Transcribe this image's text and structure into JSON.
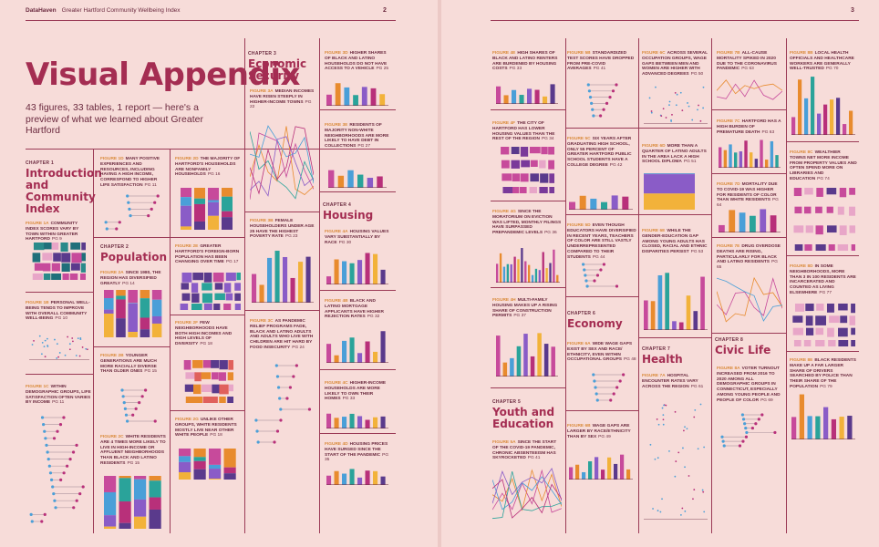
{
  "header": {
    "brand": "DataHaven",
    "doc_title": "Greater Hartford Community Wellbeing Index"
  },
  "pages": {
    "left": "2",
    "right": "3"
  },
  "title": "Visual Appendix",
  "subtitle": "43 figures, 33 tables, 1 report — here's a preview of what we learned about Greater Hartford",
  "chapters": [
    {
      "label": "CHAPTER 1",
      "name": "Introduction and Community Index"
    },
    {
      "label": "CHAPTER 2",
      "name": "Population"
    },
    {
      "label": "CHAPTER 3",
      "name": "Economic Security"
    },
    {
      "label": "CHAPTER 4",
      "name": "Housing"
    },
    {
      "label": "CHAPTER 5",
      "name": "Youth and Education"
    },
    {
      "label": "CHAPTER 6",
      "name": "Economy"
    },
    {
      "label": "CHAPTER 7",
      "name": "Health"
    },
    {
      "label": "CHAPTER 8",
      "name": "Civic Life"
    }
  ],
  "figures": [
    {
      "num": "FIGURE 1A",
      "text": "COMMUNITY INDEX SCORES VARY BY TOWN WITHIN GREATER HARTFORD",
      "pg": "PG 9"
    },
    {
      "num": "FIGURE 1B",
      "text": "PERSONAL WELL-BEING TENDS TO IMPROVE WITH OVERALL COMMUNITY WELL-BEING",
      "pg": "PG 10"
    },
    {
      "num": "FIGURE 1C",
      "text": "WITHIN DEMOGRAPHIC GROUPS, LIFE SATISFACTION OFTEN VARIES BY INCOME",
      "pg": "PG 11"
    },
    {
      "num": "FIGURE 1D",
      "text": "MANY POSITIVE EXPERIENCES AND RESOURCES, INCLUDING HAVING A HIGH INCOME, CORRESPOND TO HIGHER LIFE SATISFACTION",
      "pg": "PG 11"
    },
    {
      "num": "FIGURE 2A",
      "text": "SINCE 1980, THE REGION HAS DIVERSIFIED GREATLY",
      "pg": "PG 14"
    },
    {
      "num": "FIGURE 2B",
      "text": "YOUNGER GENERATIONS ARE MUCH MORE RACIALLY DIVERSE THAN OLDER ONES",
      "pg": "PG 15"
    },
    {
      "num": "FIGURE 2C",
      "text": "WHITE RESIDENTS ARE 4 TIMES MORE LIKELY TO LIVE IN HIGH-INCOME OR AFFLUENT NEIGHBORHOODS THAN BLACK AND LATINO RESIDENTS",
      "pg": "PG 15"
    },
    {
      "num": "FIGURE 2D",
      "text": "THE MAJORITY OF HARTFORD'S HOUSEHOLDS ARE NONFAMILY HOUSEHOLDS",
      "pg": "PG 16"
    },
    {
      "num": "FIGURE 2E",
      "text": "GREATER HARTFORD'S FOREIGN-BORN POPULATION HAS BEEN CHANGING OVER TIME",
      "pg": "PG 17"
    },
    {
      "num": "FIGURE 2F",
      "text": "FEW NEIGHBORHOODS HAVE BOTH HIGH INCOMES AND HIGH LEVELS OF DIVERSITY",
      "pg": "PG 18"
    },
    {
      "num": "FIGURE 2G",
      "text": "UNLIKE OTHER GROUPS, WHITE RESIDENTS MOSTLY LIVE NEAR OTHER WHITE PEOPLE",
      "pg": "PG 18"
    },
    {
      "num": "FIGURE 3A",
      "text": "MEDIAN INCOMES HAVE RISEN STEEPLY IN HIGHER-INCOME TOWNS",
      "pg": "PG 22"
    },
    {
      "num": "FIGURE 3B",
      "text": "FEMALE HOUSEHOLDERS UNDER AGE 25 HAVE THE HIGHEST POVERTY RATE",
      "pg": "PG 23"
    },
    {
      "num": "FIGURE 3C",
      "text": "AS PANDEMIC RELIEF PROGRAMS FADE, BLACK AND LATINO ADULTS AND ADULTS WHO LIVE WITH CHILDREN ARE HIT HARD BY FOOD INSECURITY",
      "pg": "PG 24"
    },
    {
      "num": "FIGURE 3D",
      "text": "HIGHER SHARES OF BLACK AND LATINO HOUSEHOLDS DO NOT HAVE ACCESS TO A VEHICLE",
      "pg": "PG 25"
    },
    {
      "num": "FIGURE 3E",
      "text": "RESIDENTS OF MAJORITY NON-WHITE NEIGHBORHOODS ARE MORE LIKELY TO HAVE DEBT IN COLLECTIONS",
      "pg": "PG 27"
    },
    {
      "num": "FIGURE 4A",
      "text": "HOUSING VALUES VARY SUBSTANTIALLY BY RACE",
      "pg": "PG 30"
    },
    {
      "num": "FIGURE 4B",
      "text": "BLACK AND LATINO MORTGAGE APPLICANTS HAVE HIGHER REJECTION RATES",
      "pg": "PG 32"
    },
    {
      "num": "FIGURE 4C",
      "text": "HIGHER-INCOME HOUSEHOLDS ARE MORE LIKELY TO OWN THEIR HOMES",
      "pg": "PG 33"
    },
    {
      "num": "FIGURE 4D",
      "text": "HOUSING PRICES HAVE SURGED SINCE THE START OF THE PANDEMIC",
      "pg": "PG 35"
    },
    {
      "num": "FIGURE 4E",
      "text": "HIGH SHARES OF BLACK AND LATINO RENTERS ARE BURDENED BY HOUSING COSTS",
      "pg": "PG 33"
    },
    {
      "num": "FIGURE 4F",
      "text": "THE CITY OF HARTFORD HAS LOWER HOUSING VALUES THAN THE REST OF THE REGION",
      "pg": "PG 34"
    },
    {
      "num": "FIGURE 4G",
      "text": "SINCE THE MORATORIUM ON EVICTION WAS LIFTED, MONTHLY FILINGS HAVE SURPASSED PREPANDEMIC LEVELS",
      "pg": "PG 36"
    },
    {
      "num": "FIGURE 4H",
      "text": "MULTI-FAMILY HOUSING MAKES UP A RISING SHARE OF CONSTRUCTION PERMITS",
      "pg": "PG 37"
    },
    {
      "num": "FIGURE 5A",
      "text": "SINCE THE START OF THE COVID-19 PANDEMIC, CHRONIC ABSENTEEISM HAS SKYROCKETED",
      "pg": "PG 41"
    },
    {
      "num": "FIGURE 5B",
      "text": "STANDARDIZED TEST SCORES HAVE DROPPED FROM PRE-COVID AVERAGES",
      "pg": "PG 41"
    },
    {
      "num": "FIGURE 5C",
      "text": "SIX YEARS AFTER GRADUATING HIGH SCHOOL, ONLY 55 PERCENT OF GREATER HARTFORD PUBLIC SCHOOL STUDENTS HAVE A COLLEGE DEGREE",
      "pg": "PG 42"
    },
    {
      "num": "FIGURE 5D",
      "text": "EVEN THOUGH EDUCATORS HAVE DIVERSIFIED IN RECENT YEARS, TEACHERS OF COLOR ARE STILL VASTLY UNDERREPRESENTED COMPARED TO THEIR STUDENTS",
      "pg": "PG 44"
    },
    {
      "num": "FIGURE 6A",
      "text": "WIDE WAGE GAPS EXIST BY SEX AND RACE/ ETHNICITY, EVEN WITHIN OCCUPATIONAL GROUPS",
      "pg": "PG 48"
    },
    {
      "num": "FIGURE 6B",
      "text": "WAGE GAPS ARE LARGER BY RACE/ETHNICITY THAN BY SEX",
      "pg": "PG 49"
    },
    {
      "num": "FIGURE 6C",
      "text": "ACROSS SEVERAL OCCUPATION GROUPS, WAGE GAPS BETWEEN MEN AND WOMEN ARE HIGHER WITH ADVANCED DEGREES",
      "pg": "PG 50"
    },
    {
      "num": "FIGURE 6D",
      "text": "MORE THAN A QUARTER OF LATINO ADULTS IN THE AREA LACK A HIGH SCHOOL DIPLOMA",
      "pg": "PG 51"
    },
    {
      "num": "FIGURE 6E",
      "text": "WHILE THE GENDER-EDUCATION GAP AMONG YOUNG ADULTS HAS CLOSED, RACIAL AND ETHNIC DISPARITIES PERSIST",
      "pg": "PG 53"
    },
    {
      "num": "FIGURE 7A",
      "text": "HOSPITAL ENCOUNTER RATES VARY ACROSS THE REGION",
      "pg": "PG 61"
    },
    {
      "num": "FIGURE 7B",
      "text": "ALL-CAUSE MORTALITY SPIKED IN 2020 DUE TO THE CORONAVIRUS PANDEMIC",
      "pg": "PG 63"
    },
    {
      "num": "FIGURE 7C",
      "text": "HARTFORD HAS A HIGH BURDEN OF PREMATURE DEATH",
      "pg": "PG 63"
    },
    {
      "num": "FIGURE 7D",
      "text": "MORTALITY DUE TO COVID-19 WAS HIGHER FOR RESIDENTS OF COLOR THAN WHITE RESIDENTS",
      "pg": "PG 64"
    },
    {
      "num": "FIGURE 7E",
      "text": "DRUG OVERDOSE DEATHS ARE RISING, PARTICULARLY FOR BLACK AND LATINO RESIDENTS",
      "pg": "PG 65"
    },
    {
      "num": "FIGURE 8A",
      "text": "VOTER TURNOUT INCREASED FROM 2016 TO 2020 AMONG ALL DEMOGRAPHIC GROUPS IN CONNECTICUT, ESPECIALLY AMONG YOUNG PEOPLE AND PEOPLE OF COLOR",
      "pg": "PG 69"
    },
    {
      "num": "FIGURE 8B",
      "text": "LOCAL HEALTH OFFICIALS AND HEALTHCARE WORKERS ARE GENERALLY WELL-TRUSTED",
      "pg": "PG 70"
    },
    {
      "num": "FIGURE 8C",
      "text": "WEALTHIER TOWNS NET MORE INCOME FROM PROPERTY VALUES AND OFTEN SPEND MORE ON LIBRARIES AND EDUCATION",
      "pg": "PG 74"
    },
    {
      "num": "FIGURE 8D",
      "text": "IN SOME NEIGHBORHOODS, MORE THAN 3 IN 100 RESIDENTS ARE INCARCERATED AND COUNTED AS LIVING ELSEWHERE",
      "pg": "PG 77"
    },
    {
      "num": "FIGURE 8E",
      "text": "BLACK RESIDENTS MAKE UP A FAR LARGER SHARE OF DRIVERS SEARCHED BY POLICE THAN THEIR SHARE OF THE POPULATION",
      "pg": "PG 79"
    }
  ],
  "colors": {
    "accent": "#a42d52",
    "text": "#6b2a3f",
    "fignum": "#d98a3a",
    "rule": "#9b3a56",
    "page": "#f7dcd9",
    "palette": [
      "#c74a9b",
      "#e88b2e",
      "#4a9fd8",
      "#2aa39a",
      "#8a5cc7",
      "#b8307a",
      "#f2b23a",
      "#5a3a8c"
    ]
  }
}
